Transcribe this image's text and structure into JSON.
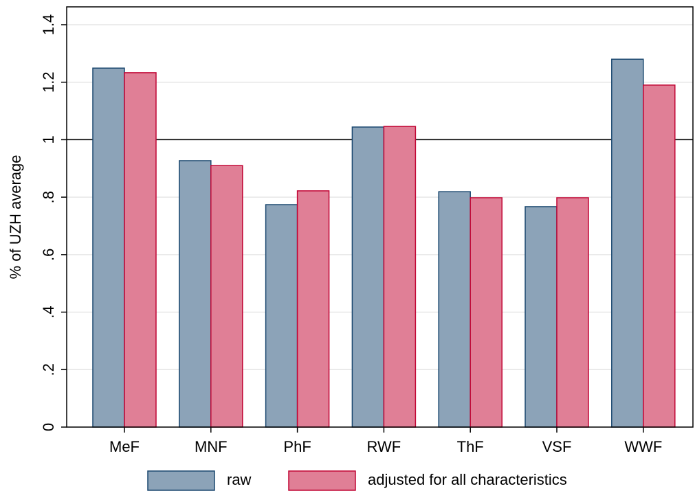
{
  "chart_data": {
    "type": "bar",
    "y_label": "% of UZH average",
    "categories": [
      "MeF",
      "MNF",
      "PhF",
      "RWF",
      "ThF",
      "VSF",
      "WWF"
    ],
    "series": [
      {
        "name": "raw",
        "color": "#8ca3b8",
        "edge": "#1a476f",
        "values": [
          1.249,
          0.927,
          0.774,
          1.044,
          0.819,
          0.767,
          1.28
        ]
      },
      {
        "name": "adjusted for all characteristics",
        "color": "#e07f96",
        "edge": "#c10534",
        "values": [
          1.233,
          0.91,
          0.822,
          1.046,
          0.798,
          0.798,
          1.19
        ]
      }
    ],
    "ylim": [
      0,
      1.4
    ],
    "yticks": [
      0,
      {
        "value": 0.2,
        "label": ".2"
      },
      {
        "value": 0.4,
        "label": ".4"
      },
      {
        "value": 0.6,
        "label": ".6"
      },
      {
        "value": 0.8,
        "label": ".8"
      },
      1,
      1.2,
      1.4
    ],
    "yline": 1,
    "grid": true,
    "legend": "bottom"
  }
}
